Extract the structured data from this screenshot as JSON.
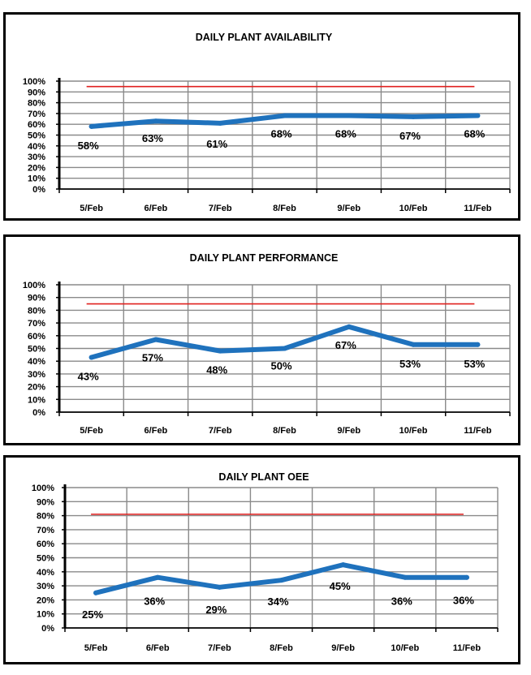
{
  "chart_data": [
    {
      "type": "line",
      "title": "DAILY PLANT AVAILABILITY",
      "categories": [
        "5/Feb",
        "6/Feb",
        "7/Feb",
        "8/Feb",
        "9/Feb",
        "10/Feb",
        "11/Feb"
      ],
      "series": [
        {
          "values": [
            58,
            63,
            61,
            68,
            68,
            67,
            68
          ],
          "color": "#1f72bd"
        },
        {
          "values": [
            95,
            95,
            95,
            95,
            95,
            95,
            95
          ],
          "color": "#e0211f"
        }
      ],
      "data_labels": [
        "58%",
        "63%",
        "61%",
        "68%",
        "68%",
        "67%",
        "68%"
      ],
      "yticks": [
        "0%",
        "10%",
        "20%",
        "30%",
        "40%",
        "50%",
        "60%",
        "70%",
        "80%",
        "90%",
        "100%"
      ],
      "ylim": [
        0,
        100
      ],
      "grid": true
    },
    {
      "type": "line",
      "title": "DAILY PLANT PERFORMANCE",
      "categories": [
        "5/Feb",
        "6/Feb",
        "7/Feb",
        "8/Feb",
        "9/Feb",
        "10/Feb",
        "11/Feb"
      ],
      "series": [
        {
          "values": [
            43,
            57,
            48,
            50,
            67,
            53,
            53
          ],
          "color": "#1f72bd"
        },
        {
          "values": [
            85,
            85,
            85,
            85,
            85,
            85,
            85
          ],
          "color": "#e0211f"
        }
      ],
      "data_labels": [
        "43%",
        "57%",
        "48%",
        "50%",
        "67%",
        "53%",
        "53%"
      ],
      "yticks": [
        "0%",
        "10%",
        "20%",
        "30%",
        "40%",
        "50%",
        "60%",
        "70%",
        "80%",
        "90%",
        "100%"
      ],
      "ylim": [
        0,
        100
      ],
      "grid": true
    },
    {
      "type": "line",
      "title": "DAILY PLANT OEE",
      "categories": [
        "5/Feb",
        "6/Feb",
        "7/Feb",
        "8/Feb",
        "9/Feb",
        "10/Feb",
        "11/Feb"
      ],
      "series": [
        {
          "values": [
            25,
            36,
            29,
            34,
            45,
            36,
            36
          ],
          "color": "#1f72bd"
        },
        {
          "values": [
            81,
            81,
            81,
            81,
            81,
            81,
            81
          ],
          "color": "#e0211f"
        }
      ],
      "data_labels": [
        "25%",
        "36%",
        "29%",
        "34%",
        "45%",
        "36%",
        "36%"
      ],
      "yticks": [
        "0%",
        "10%",
        "20%",
        "30%",
        "40%",
        "50%",
        "60%",
        "70%",
        "80%",
        "90%",
        "100%"
      ],
      "ylim": [
        0,
        100
      ],
      "grid": true
    }
  ]
}
